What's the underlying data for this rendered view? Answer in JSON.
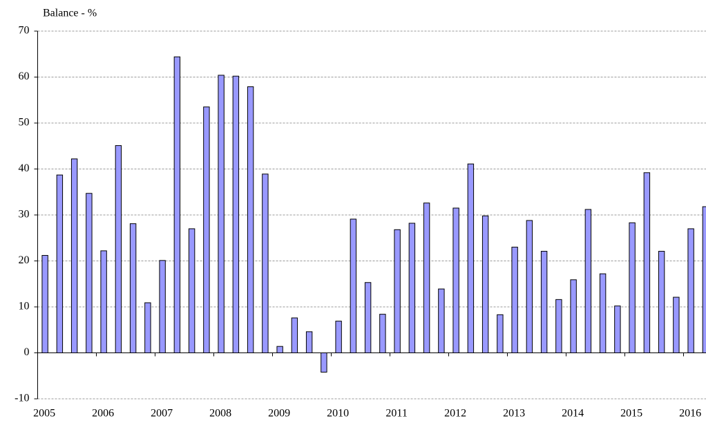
{
  "chart_data": {
    "type": "bar",
    "title": "Balance - %",
    "categories": [
      "2005",
      null,
      null,
      null,
      "2006",
      null,
      null,
      null,
      "2007",
      null,
      null,
      null,
      "2008",
      null,
      null,
      null,
      "2009",
      null,
      null,
      null,
      "2010",
      null,
      null,
      null,
      "2011",
      null,
      null,
      null,
      "2012",
      null,
      null,
      null,
      "2013",
      null,
      null,
      null,
      "2014",
      null,
      null,
      null,
      "2015",
      null,
      null,
      null,
      "2016",
      null
    ],
    "values": [
      21.2,
      38.7,
      42.2,
      34.7,
      22.2,
      45.1,
      28.1,
      10.9,
      20.1,
      64.4,
      27.0,
      53.5,
      60.4,
      60.2,
      57.9,
      38.9,
      1.4,
      7.6,
      4.6,
      -4.2,
      6.9,
      29.1,
      15.3,
      8.4,
      26.8,
      28.2,
      32.6,
      13.9,
      31.5,
      41.1,
      29.8,
      8.3,
      23.0,
      28.8,
      22.1,
      11.6,
      15.9,
      31.2,
      17.2,
      10.2,
      28.3,
      39.2,
      22.1,
      12.1,
      27.0,
      31.8
    ],
    "color": "#9999ff",
    "ylim": [
      -10,
      70
    ],
    "yticks": [
      -10,
      0,
      10,
      20,
      30,
      40,
      50,
      60,
      70
    ],
    "grid": true
  }
}
